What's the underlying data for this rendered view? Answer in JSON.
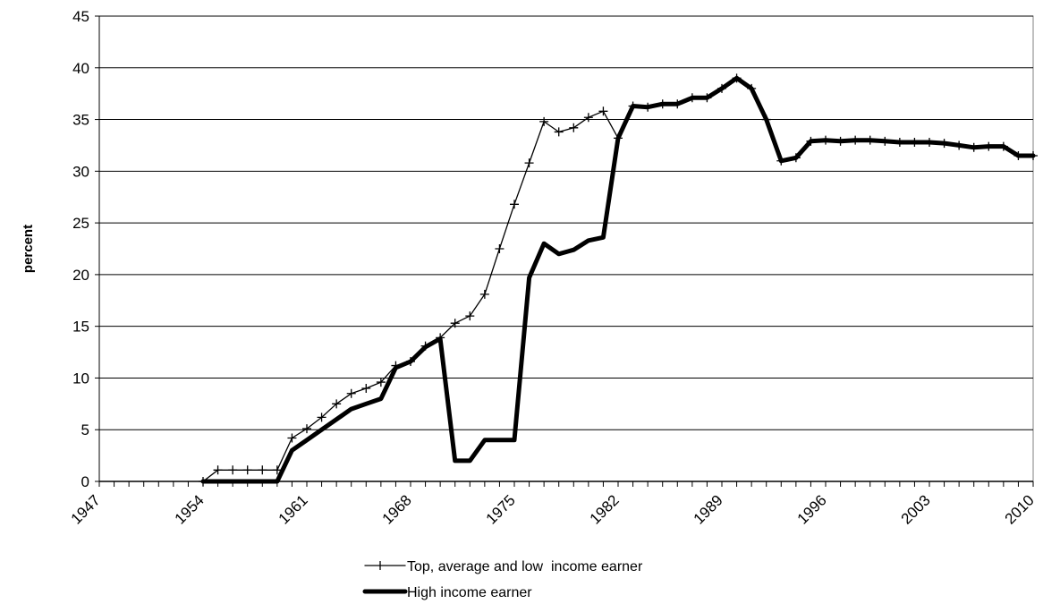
{
  "chart_data": {
    "type": "line",
    "title": "",
    "xlabel": "",
    "ylabel": "percent",
    "xlim": [
      1947,
      2010
    ],
    "ylim": [
      0,
      45
    ],
    "yticks": [
      0,
      5,
      10,
      15,
      20,
      25,
      30,
      35,
      40,
      45
    ],
    "xticks": [
      1947,
      1954,
      1961,
      1968,
      1975,
      1982,
      1989,
      1996,
      2003,
      2010
    ],
    "grid": "horizontal",
    "legend_position": "bottom",
    "series": [
      {
        "name": "Top, average and low  income earner",
        "color": "#000000",
        "style": "thin-line-plus-markers",
        "x": [
          1954,
          1955,
          1956,
          1957,
          1958,
          1959,
          1960,
          1961,
          1962,
          1963,
          1964,
          1965,
          1966,
          1967,
          1968,
          1969,
          1970,
          1971,
          1972,
          1973,
          1974,
          1975,
          1976,
          1977,
          1978,
          1979,
          1980,
          1981,
          1982,
          1983,
          1984,
          1985,
          1986,
          1987,
          1988,
          1989,
          1990,
          1991,
          1992,
          1993,
          1994,
          1995,
          1996,
          1997,
          1998,
          1999,
          2000,
          2001,
          2002,
          2003,
          2004,
          2005,
          2006,
          2007,
          2008,
          2009,
          2010
        ],
        "y": [
          0,
          1.1,
          1.1,
          1.1,
          1.1,
          1.1,
          4.2,
          5.1,
          6.2,
          7.5,
          8.5,
          9.0,
          9.6,
          11.2,
          11.6,
          13.1,
          13.9,
          15.3,
          16.0,
          18.1,
          22.5,
          26.8,
          30.8,
          34.8,
          33.8,
          34.2,
          35.2,
          35.8,
          33.2,
          36.3,
          36.2,
          36.5,
          36.5,
          37.1,
          37.1,
          38.0,
          39.0,
          38.0,
          35.0,
          31.0,
          31.3,
          32.9,
          33.0,
          32.9,
          33.0,
          33.0,
          32.9,
          32.8,
          32.8,
          32.8,
          32.7,
          32.5,
          32.3,
          32.4,
          32.4,
          31.5,
          31.5
        ]
      },
      {
        "name": "High income earner",
        "color": "#000000",
        "style": "thick-line",
        "x": [
          1954,
          1955,
          1956,
          1957,
          1958,
          1959,
          1960,
          1961,
          1962,
          1963,
          1964,
          1965,
          1966,
          1967,
          1968,
          1969,
          1970,
          1971,
          1972,
          1973,
          1974,
          1975,
          1976,
          1977,
          1978,
          1979,
          1980,
          1981,
          1982,
          1983,
          1984,
          1985,
          1986,
          1987,
          1988,
          1989,
          1990,
          1991,
          1992,
          1993,
          1994,
          1995,
          1996,
          1997,
          1998,
          1999,
          2000,
          2001,
          2002,
          2003,
          2004,
          2005,
          2006,
          2007,
          2008,
          2009,
          2010
        ],
        "y": [
          0,
          0,
          0,
          0,
          0,
          0,
          3.0,
          4.0,
          5.0,
          6.0,
          7.0,
          7.5,
          8.0,
          11.0,
          11.6,
          13.0,
          13.8,
          2.0,
          2.0,
          4.0,
          4.0,
          4.0,
          19.7,
          23.0,
          22.0,
          22.4,
          23.3,
          23.6,
          33.2,
          36.3,
          36.2,
          36.5,
          36.5,
          37.1,
          37.1,
          38.0,
          39.0,
          38.0,
          35.0,
          31.0,
          31.3,
          32.9,
          33.0,
          32.9,
          33.0,
          33.0,
          32.9,
          32.8,
          32.8,
          32.8,
          32.7,
          32.5,
          32.3,
          32.4,
          32.4,
          31.5,
          31.5
        ]
      }
    ]
  }
}
